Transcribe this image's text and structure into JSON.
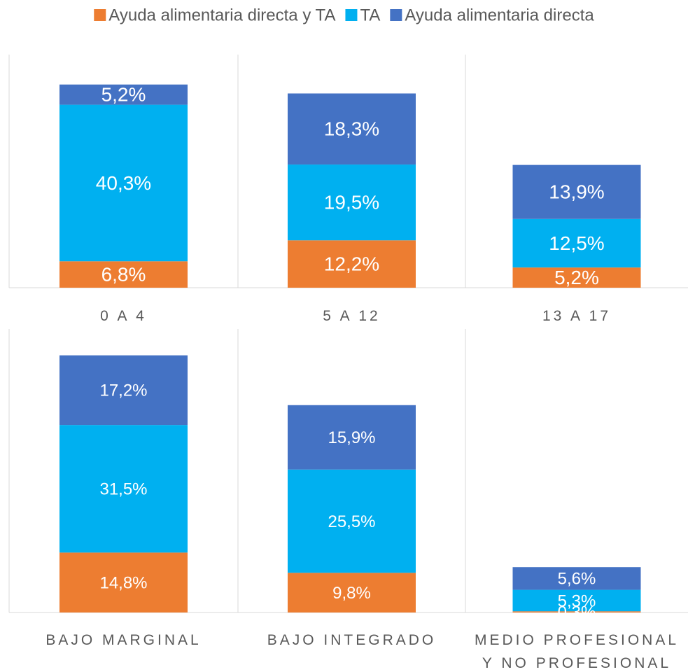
{
  "chart_data": [
    {
      "type": "stacked_bar",
      "categories": [
        "0 A 4",
        "5 A 12",
        "13 A 17"
      ],
      "ylim": [
        0,
        60
      ],
      "series": [
        {
          "name": "Ayuda alimentaria directa y TA",
          "color": "#ed7d31",
          "values": [
            6.8,
            12.2,
            5.2
          ],
          "value_labels": [
            "6,8%",
            "12,2%",
            "5,2%"
          ]
        },
        {
          "name": "TA",
          "color": "#00b0f0",
          "values": [
            40.3,
            19.5,
            12.5
          ],
          "value_labels": [
            "40,3%",
            "19,5%",
            "12,5%"
          ]
        },
        {
          "name": "Ayuda alimentaria directa",
          "color": "#4472c4",
          "values": [
            5.2,
            18.3,
            13.9
          ],
          "value_labels": [
            "5,2%",
            "18,3%",
            "13,9%"
          ]
        }
      ]
    },
    {
      "type": "stacked_bar",
      "categories": [
        "BAJO MARGINAL",
        "BAJO INTEGRADO",
        "MEDIO PROFESIONAL Y NO PROFESIONAL"
      ],
      "ylim": [
        0,
        70
      ],
      "series": [
        {
          "color": "#ed7d31",
          "values": [
            14.8,
            9.8,
            0.3
          ],
          "value_labels": [
            "14,8%",
            "9,8%",
            "0,3%"
          ]
        },
        {
          "color": "#00b0f0",
          "values": [
            31.5,
            25.5,
            5.3
          ],
          "value_labels": [
            "31,5%",
            "25,5%",
            "5,3%"
          ]
        },
        {
          "color": "#4472c4",
          "values": [
            17.2,
            15.9,
            5.6
          ],
          "value_labels": [
            "17,2%",
            "15,9%",
            "5,6%"
          ]
        }
      ]
    }
  ]
}
